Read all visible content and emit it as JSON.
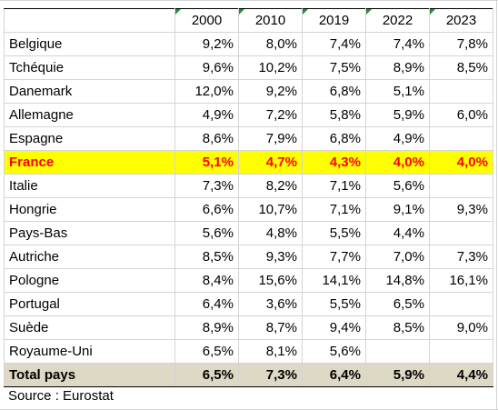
{
  "headers": [
    "2000",
    "2010",
    "2019",
    "2022",
    "2023"
  ],
  "rows": [
    {
      "name": "Belgique",
      "values": [
        "9,2%",
        "8,0%",
        "7,4%",
        "7,4%",
        "7,8%"
      ]
    },
    {
      "name": "Tchéquie",
      "values": [
        "9,6%",
        "10,2%",
        "7,5%",
        "8,9%",
        "8,5%"
      ]
    },
    {
      "name": "Danemark",
      "values": [
        "12,0%",
        "9,2%",
        "6,8%",
        "5,1%",
        ""
      ]
    },
    {
      "name": "Allemagne",
      "values": [
        "4,9%",
        "7,2%",
        "5,8%",
        "5,9%",
        "6,0%"
      ]
    },
    {
      "name": "Espagne",
      "values": [
        "8,6%",
        "7,9%",
        "6,8%",
        "4,9%",
        ""
      ]
    },
    {
      "name": "France",
      "values": [
        "5,1%",
        "4,7%",
        "4,3%",
        "4,0%",
        "4,0%"
      ],
      "highlight": true
    },
    {
      "name": "Italie",
      "values": [
        "7,3%",
        "8,2%",
        "7,1%",
        "5,6%",
        ""
      ]
    },
    {
      "name": "Hongrie",
      "values": [
        "6,6%",
        "10,7%",
        "7,1%",
        "9,1%",
        "9,3%"
      ]
    },
    {
      "name": "Pays-Bas",
      "values": [
        "5,6%",
        "4,8%",
        "5,5%",
        "4,4%",
        ""
      ]
    },
    {
      "name": "Autriche",
      "values": [
        "8,5%",
        "9,3%",
        "7,7%",
        "7,0%",
        "7,3%"
      ]
    },
    {
      "name": "Pologne",
      "values": [
        "8,4%",
        "15,6%",
        "14,1%",
        "14,8%",
        "16,1%"
      ]
    },
    {
      "name": "Portugal",
      "values": [
        "6,4%",
        "3,6%",
        "5,5%",
        "6,5%",
        ""
      ]
    },
    {
      "name": "Suède",
      "values": [
        "8,9%",
        "8,7%",
        "9,4%",
        "8,5%",
        "9,0%"
      ]
    },
    {
      "name": "Royaume-Uni",
      "values": [
        "6,5%",
        "8,1%",
        "5,6%",
        "",
        ""
      ]
    }
  ],
  "total": {
    "name": "Total pays",
    "values": [
      "6,5%",
      "7,3%",
      "6,4%",
      "5,9%",
      "4,4%"
    ]
  },
  "source": "Source : Eurostat",
  "colors": {
    "highlight_bg": "#ffff00",
    "highlight_text": "#ff0000",
    "total_bg": "#ddd9c4",
    "comment_marker": "#1e8e3e"
  }
}
